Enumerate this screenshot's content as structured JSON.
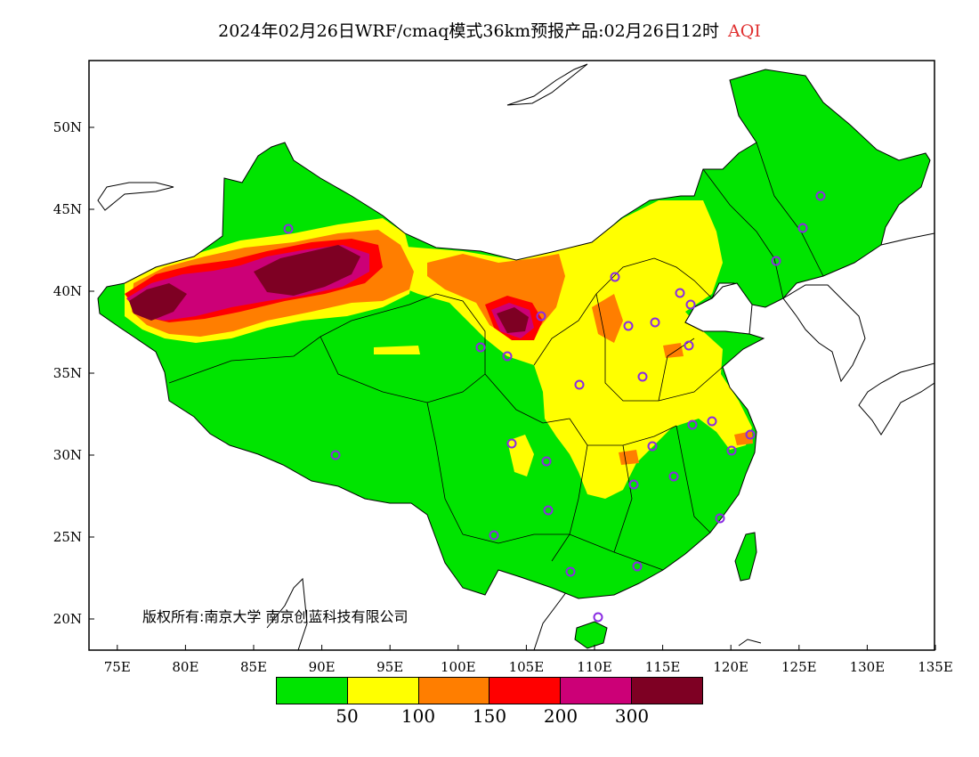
{
  "title": {
    "main": "2024年02月26日WRF/cmaq模式36km预报产品:02月26日12时",
    "variable": "AQI"
  },
  "axes": {
    "x_ticks": [
      "75E",
      "80E",
      "85E",
      "90E",
      "95E",
      "100E",
      "105E",
      "110E",
      "115E",
      "120E",
      "125E",
      "130E",
      "135E"
    ],
    "y_ticks": [
      "50N",
      "45N",
      "40N",
      "35N",
      "30N",
      "25N",
      "20N"
    ]
  },
  "copyright": "版权所有:南京大学 南京创蓝科技有限公司",
  "legend": {
    "colors": [
      "#00e400",
      "#ffff00",
      "#ff7e00",
      "#ff0000",
      "#cc0077",
      "#7e0023"
    ],
    "labels": [
      "50",
      "100",
      "150",
      "200",
      "300"
    ]
  },
  "colors": {
    "station_ring": "#8a2be2",
    "ocean": "#ffffff"
  }
}
